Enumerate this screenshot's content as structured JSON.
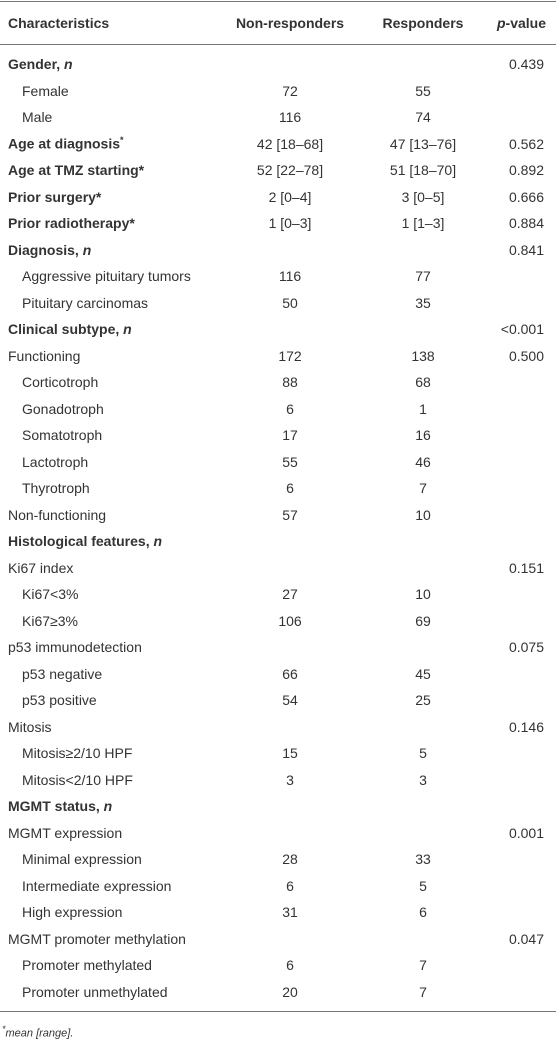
{
  "table": {
    "header": {
      "label": "Characteristics",
      "col1": "Non-responders",
      "col2": "Responders",
      "col3_em": "p",
      "col3": "-value"
    },
    "rows": [
      {
        "label": "Gender, ",
        "label_em": "n",
        "bold": true,
        "indent": 0,
        "values": [
          null,
          null,
          "0.439"
        ]
      },
      {
        "label": "Female",
        "indent": 1,
        "values": [
          "72",
          "55",
          null
        ]
      },
      {
        "label": "Male",
        "indent": 1,
        "values": [
          "116",
          "74",
          null
        ]
      },
      {
        "label": "Age at diagnosis",
        "label_sup": "*",
        "bold": true,
        "indent": 0,
        "values": [
          "42 [18–68]",
          "47 [13–76]",
          "0.562"
        ]
      },
      {
        "label": "Age at TMZ starting*",
        "bold": true,
        "indent": 0,
        "values": [
          "52 [22–78]",
          "51 [18–70]",
          "0.892"
        ]
      },
      {
        "label": "Prior surgery*",
        "bold": true,
        "indent": 0,
        "values": [
          "2 [0–4]",
          "3 [0–5]",
          "0.666"
        ]
      },
      {
        "label": "Prior radiotherapy*",
        "bold": true,
        "indent": 0,
        "values": [
          "1 [0–3]",
          "1 [1–3]",
          "0.884"
        ]
      },
      {
        "label": "Diagnosis, ",
        "label_em": "n",
        "bold": true,
        "indent": 0,
        "values": [
          null,
          null,
          "0.841"
        ]
      },
      {
        "label": "Aggressive pituitary tumors",
        "indent": 1,
        "values": [
          "116",
          "77",
          null
        ]
      },
      {
        "label": "Pituitary carcinomas",
        "indent": 1,
        "values": [
          "50",
          "35",
          null
        ]
      },
      {
        "label": "Clinical subtype, ",
        "label_em": "n",
        "bold": true,
        "indent": 0,
        "values": [
          null,
          null,
          "<0.001"
        ]
      },
      {
        "label": "Functioning",
        "indent": 0,
        "values": [
          "172",
          "138",
          "0.500"
        ]
      },
      {
        "label": "Corticotroph",
        "indent": 1,
        "values": [
          "88",
          "68",
          null
        ]
      },
      {
        "label": "Gonadotroph",
        "indent": 1,
        "values": [
          "6",
          "1",
          null
        ]
      },
      {
        "label": "Somatotroph",
        "indent": 1,
        "values": [
          "17",
          "16",
          null
        ]
      },
      {
        "label": "Lactotroph",
        "indent": 1,
        "values": [
          "55",
          "46",
          null
        ]
      },
      {
        "label": "Thyrotroph",
        "indent": 1,
        "values": [
          "6",
          "7",
          null
        ]
      },
      {
        "label": "Non-functioning",
        "indent": 0,
        "values": [
          "57",
          "10",
          null
        ]
      },
      {
        "label": "Histological features, ",
        "label_em": "n",
        "bold": true,
        "indent": 0,
        "values": [
          null,
          null,
          null
        ]
      },
      {
        "label": "Ki67 index",
        "indent": 0,
        "values": [
          null,
          null,
          "0.151"
        ]
      },
      {
        "label": "Ki67<3%",
        "indent": 1,
        "values": [
          "27",
          "10",
          null
        ]
      },
      {
        "label": "Ki67≥3%",
        "indent": 1,
        "values": [
          "106",
          "69",
          null
        ]
      },
      {
        "label": "p53 immunodetection",
        "indent": 0,
        "values": [
          null,
          null,
          "0.075"
        ]
      },
      {
        "label": "p53 negative",
        "indent": 1,
        "values": [
          "66",
          "45",
          null
        ]
      },
      {
        "label": "p53 positive",
        "indent": 1,
        "values": [
          "54",
          "25",
          null
        ]
      },
      {
        "label": "Mitosis",
        "indent": 0,
        "values": [
          null,
          null,
          "0.146"
        ]
      },
      {
        "label": "Mitosis≥2/10 HPF",
        "indent": 1,
        "values": [
          "15",
          "5",
          null
        ]
      },
      {
        "label": "Mitosis<2/10 HPF",
        "indent": 1,
        "values": [
          "3",
          "3",
          null
        ]
      },
      {
        "label": "MGMT status, ",
        "label_em": "n",
        "bold": true,
        "indent": 0,
        "values": [
          null,
          null,
          null
        ]
      },
      {
        "label": "MGMT expression",
        "indent": 0,
        "values": [
          null,
          null,
          "0.001"
        ]
      },
      {
        "label": "Minimal expression",
        "indent": 1,
        "values": [
          "28",
          "33",
          null
        ]
      },
      {
        "label": "Intermediate expression",
        "indent": 1,
        "values": [
          "6",
          "5",
          null
        ]
      },
      {
        "label": "High expression",
        "indent": 1,
        "values": [
          "31",
          "6",
          null
        ]
      },
      {
        "label": "MGMT promoter methylation",
        "indent": 0,
        "values": [
          null,
          null,
          "0.047"
        ]
      },
      {
        "label": "Promoter methylated",
        "indent": 1,
        "values": [
          "6",
          "7",
          null
        ]
      },
      {
        "label": "Promoter unmethylated",
        "indent": 1,
        "values": [
          "20",
          "7",
          null
        ]
      }
    ],
    "footnote": {
      "sup": "*",
      "text": "mean [range]."
    }
  }
}
